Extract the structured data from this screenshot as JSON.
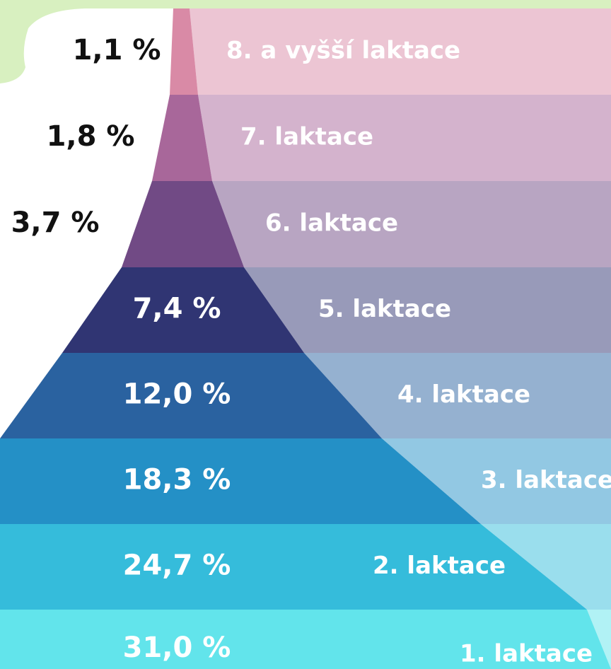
{
  "chart_data": {
    "type": "pyramid",
    "categories": [
      "8. a vyšší laktace",
      "7. laktace",
      "6. laktace",
      "5. laktace",
      "4. laktace",
      "3. laktace",
      "2. laktace",
      "1. laktace"
    ],
    "values": [
      1.1,
      1.8,
      3.7,
      7.4,
      12.0,
      18.3,
      24.7,
      31.0
    ],
    "value_labels": [
      "1,1 %",
      "1,8 %",
      "3,7 %",
      "7,4 %",
      "12,0 %",
      "18,3 %",
      "24,7 %",
      "31,0 %"
    ],
    "colors": [
      "#d98aa6",
      "#a8679a",
      "#714a85",
      "#303573",
      "#2a62a0",
      "#2490c6",
      "#35bcdb",
      "#62e4eb"
    ]
  }
}
